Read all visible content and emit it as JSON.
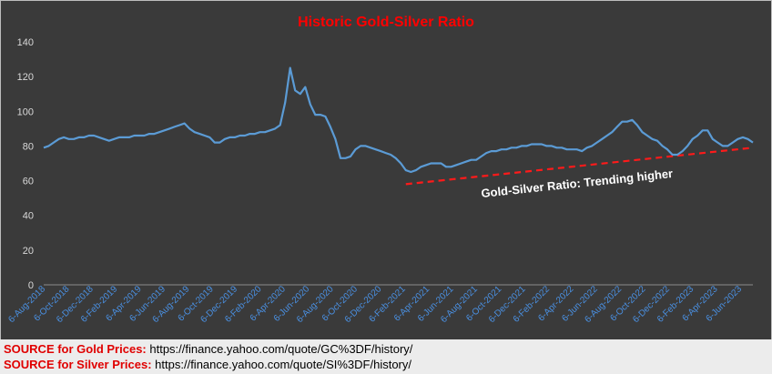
{
  "chart_data": {
    "type": "line",
    "title": "Historic Gold-Silver Ratio",
    "ylim": [
      0,
      140
    ],
    "yticks": [
      0,
      20,
      40,
      60,
      80,
      100,
      120,
      140
    ],
    "x_tick_labels": [
      "6-Aug-2018",
      "6-Oct-2018",
      "6-Dec-2018",
      "6-Feb-2019",
      "6-Apr-2019",
      "6-Jun-2019",
      "6-Aug-2019",
      "6-Oct-2019",
      "6-Dec-2019",
      "6-Feb-2020",
      "6-Apr-2020",
      "6-Jun-2020",
      "6-Aug-2020",
      "6-Oct-2020",
      "6-Dec-2020",
      "6-Feb-2021",
      "6-Apr-2021",
      "6-Jun-2021",
      "6-Aug-2021",
      "6-Oct-2021",
      "6-Dec-2021",
      "6-Feb-2022",
      "6-Apr-2022",
      "6-Jun-2022",
      "6-Aug-2022",
      "6-Oct-2022",
      "6-Dec-2022",
      "6-Feb-2023",
      "6-Apr-2023",
      "6-Jun-2023"
    ],
    "series": [
      {
        "values": [
          79,
          80,
          82,
          84,
          85,
          84,
          84,
          85,
          85,
          86,
          86,
          85,
          84,
          83,
          84,
          85,
          85,
          85,
          86,
          86,
          86,
          87,
          87,
          88,
          89,
          90,
          91,
          92,
          93,
          90,
          88,
          87,
          86,
          85,
          82,
          82,
          84,
          85,
          85,
          86,
          86,
          87,
          87,
          88,
          88,
          89,
          90,
          92,
          105,
          125,
          112,
          110,
          114,
          104,
          98,
          98,
          97,
          91,
          84,
          73,
          73,
          74,
          78,
          80,
          80,
          79,
          78,
          77,
          76,
          75,
          73,
          70,
          66,
          65,
          66,
          68,
          69,
          70,
          70,
          70,
          68,
          68,
          69,
          70,
          71,
          72,
          72,
          74,
          76,
          77,
          77,
          78,
          78,
          79,
          79,
          80,
          80,
          81,
          81,
          81,
          80,
          80,
          79,
          79,
          78,
          78,
          78,
          77,
          79,
          80,
          82,
          84,
          86,
          88,
          91,
          94,
          94,
          95,
          92,
          88,
          86,
          84,
          83,
          80,
          78,
          75,
          75,
          77,
          80,
          84,
          86,
          89,
          89,
          84,
          82,
          80,
          80,
          82,
          84,
          85,
          84,
          82
        ],
        "color": "#5b9bd5"
      }
    ],
    "trendline": {
      "from": [
        72,
        58
      ],
      "to": [
        141,
        79
      ],
      "color": "#ff1a1a",
      "style": "dashed"
    },
    "annotation": "Gold-Silver Ratio: Trending higher",
    "grid": false,
    "legend": "none"
  },
  "sources": [
    {
      "label": "SOURCE for Gold Prices:",
      "url": " https://finance.yahoo.com/quote/GC%3DF/history/"
    },
    {
      "label": "SOURCE for Silver Prices:",
      "url": " https://finance.yahoo.com/quote/SI%3DF/history/"
    }
  ],
  "colors": {
    "panel_bg": "#3a3a3a",
    "axis_text": "#d9d9d9",
    "title": "#ff0000",
    "tick_label": "#4a90e2"
  }
}
